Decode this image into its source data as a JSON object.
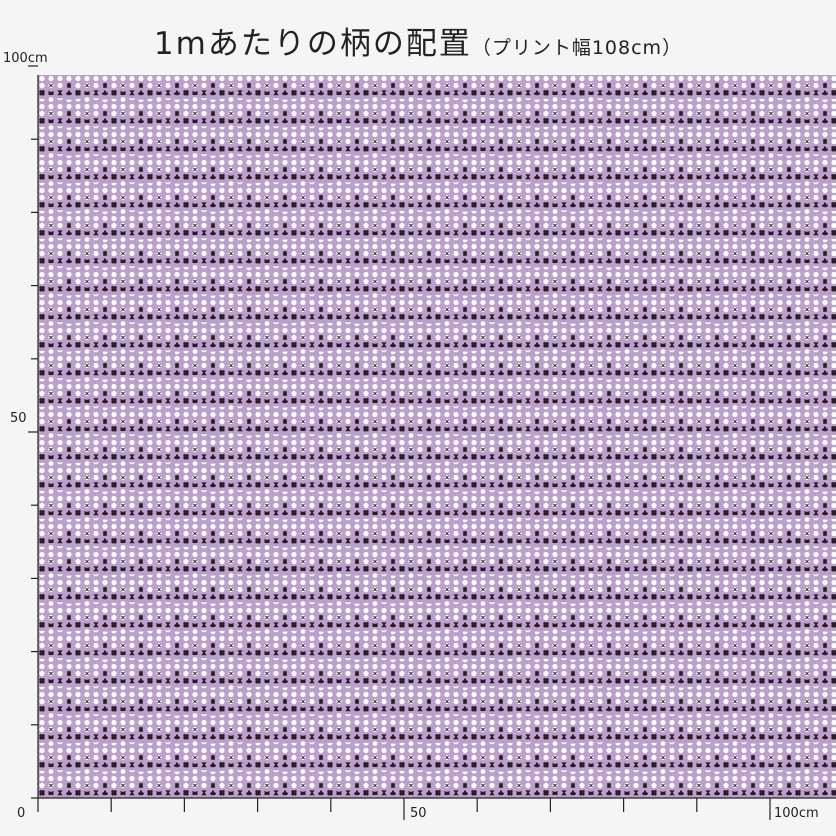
{
  "title": {
    "main": "1mあたりの柄の配置",
    "sub": "（プリント幅108cm）"
  },
  "axis_labels": {
    "y_top": "100cm",
    "y_mid": "50",
    "origin": "0",
    "x_mid": "50",
    "x_end": "100cm"
  },
  "colors": {
    "background": "#f5f5f5",
    "fabric": "#bba0cb",
    "motif_dark": "#2a1a24",
    "motif_light": "#ffffff",
    "axis": "#222222"
  },
  "pattern": {
    "row_kinds": [
      "light-dots",
      "mixed-dots",
      "dark-motifs",
      "light-shapes"
    ],
    "motif_icons": [
      "dot-icon",
      "x-dot-icon",
      "flower-icon",
      "cat-face-icon",
      "hat-icon",
      "hourglass-icon",
      "moon-icon",
      "cross-icon"
    ]
  }
}
